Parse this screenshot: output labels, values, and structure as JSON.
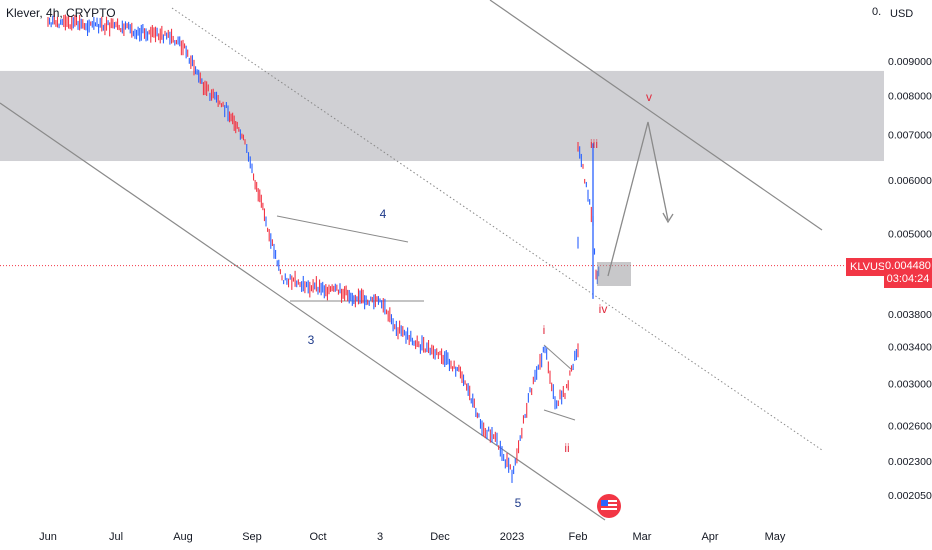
{
  "header": {
    "title": "Klever, 4h, CRYPTO",
    "currency": "USD",
    "top_value": "0."
  },
  "price_tag": {
    "symbol": "KLVUSD",
    "price": "0.004480",
    "countdown": "03:04:24"
  },
  "chart_data": {
    "type": "line",
    "title": "Klever, 4h, CRYPTO",
    "y_scale": "log",
    "ylim": [
      0.00195,
      0.0105
    ],
    "y_ticks": [
      "0.009000",
      "0.008000",
      "0.007000",
      "0.006000",
      "0.005000",
      "0.003800",
      "0.003400",
      "0.003000",
      "0.002600",
      "0.002300",
      "0.002050"
    ],
    "x_ticks": [
      "Jun",
      "Jul",
      "Aug",
      "Sep",
      "Oct",
      "3",
      "Dec",
      "2023",
      "Feb",
      "Mar",
      "Apr",
      "May"
    ],
    "series": [
      {
        "x": [
          "Jun",
          "Jul",
          "Jul 25",
          "Aug",
          "Aug 8",
          "Aug 15",
          "Aug 22",
          "Sep",
          "Sep 8",
          "Sep 15",
          "Sep 22",
          "Oct",
          "Oct 8",
          "Oct 15",
          "3",
          "Nov 10",
          "Nov 20",
          "Dec",
          "Dec 10",
          "Dec 18",
          "Dec 26",
          "2023",
          "Jan 10",
          "Jan 14",
          "Jan 18",
          "Jan 22",
          "Jan 26",
          "Feb",
          "Feb 3",
          "Feb 5",
          "Feb 7"
        ],
        "y": [
          0.0103,
          0.0101,
          0.0098,
          0.0095,
          0.0082,
          0.0076,
          0.0068,
          0.0062,
          0.0052,
          0.0043,
          0.0042,
          0.00415,
          0.0041,
          0.004,
          0.00395,
          0.0036,
          0.0034,
          0.0033,
          0.0031,
          0.0026,
          0.00245,
          0.0022,
          0.0029,
          0.0034,
          0.0028,
          0.0029,
          0.0034,
          0.0068,
          0.0052,
          0.0043,
          0.00448
        ]
      }
    ],
    "annotations": {
      "blue_wave": [
        "3",
        "4",
        "5"
      ],
      "red_wave": [
        "i",
        "ii",
        "iii",
        "iv",
        "v"
      ]
    },
    "zone": {
      "from": 0.0064,
      "to": 0.0087
    },
    "current_price": 0.00448,
    "grid": false,
    "legend": "none"
  },
  "colors": {
    "up": "#2962ff",
    "down": "#f23645",
    "zone": "#c8c8cc",
    "line": "#8a8a8a",
    "wave_blue": "#1e3a8a",
    "wave_red": "#e0283c"
  }
}
